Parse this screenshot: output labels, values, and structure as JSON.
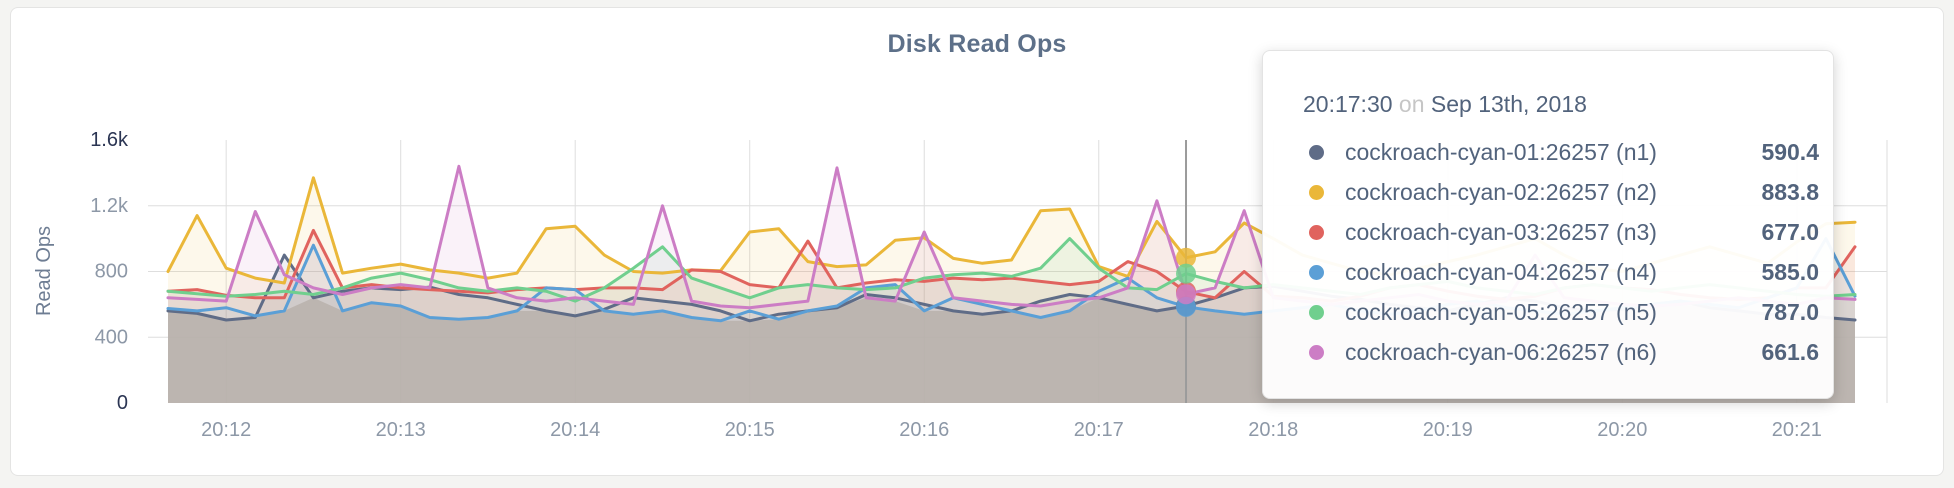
{
  "colors": {
    "title": "#5d7089",
    "axis_text": "#8d98a7",
    "axis_text_emphasis": "#2b3553",
    "axis_title": "#6e7d93",
    "grid": "#dedede",
    "hover_line": "#9b9b9b",
    "base_area_fill": "#d2cfc7",
    "tooltip_text": "#52637c",
    "tooltip_muted": "#c6c6c6"
  },
  "tooltip": {
    "time": "20:17:30",
    "connector": "on",
    "date": "Sep 13th, 2018",
    "hover_index": 35,
    "rows": [
      {
        "label": "cockroach-cyan-01:26257 (n1)",
        "value": "590.4",
        "color": "#5f6c87"
      },
      {
        "label": "cockroach-cyan-02:26257 (n2)",
        "value": "883.8",
        "color": "#eab739"
      },
      {
        "label": "cockroach-cyan-03:26257 (n3)",
        "value": "677.0",
        "color": "#e0635e"
      },
      {
        "label": "cockroach-cyan-04:26257 (n4)",
        "value": "585.0",
        "color": "#5b9fd6"
      },
      {
        "label": "cockroach-cyan-05:26257 (n5)",
        "value": "787.0",
        "color": "#70cf8e"
      },
      {
        "label": "cockroach-cyan-06:26257 (n6)",
        "value": "661.6",
        "color": "#cc7dc5"
      }
    ]
  },
  "chart_data": {
    "type": "line",
    "title": "Disk Read Ops",
    "ylabel": "Read Ops",
    "ylim": [
      0,
      1600
    ],
    "grid": true,
    "x_start": "20:11:40",
    "x_interval_seconds": 10,
    "x_ticks": [
      {
        "label": "20:12",
        "index": 2
      },
      {
        "label": "20:13",
        "index": 8
      },
      {
        "label": "20:14",
        "index": 14
      },
      {
        "label": "20:15",
        "index": 20
      },
      {
        "label": "20:16",
        "index": 26
      },
      {
        "label": "20:17",
        "index": 32
      },
      {
        "label": "20:18",
        "index": 38
      },
      {
        "label": "20:19",
        "index": 44
      },
      {
        "label": "20:20",
        "index": 50
      },
      {
        "label": "20:21",
        "index": 56
      }
    ],
    "y_ticks": [
      {
        "label": "0",
        "value": 0
      },
      {
        "label": "400",
        "value": 400
      },
      {
        "label": "800",
        "value": 800
      },
      {
        "label": "1.2k",
        "value": 1200
      },
      {
        "label": "1.6k",
        "value": 1600
      }
    ],
    "legend_position": "tooltip",
    "series": [
      {
        "name": "cockroach-cyan-01:26257 (n1)",
        "color": "#5f6c87",
        "values": [
          560,
          545,
          505,
          520,
          900,
          640,
          680,
          700,
          690,
          705,
          660,
          640,
          600,
          560,
          530,
          570,
          640,
          620,
          600,
          560,
          500,
          540,
          560,
          580,
          660,
          640,
          600,
          560,
          540,
          560,
          620,
          660,
          640,
          600,
          560,
          590.4,
          640,
          700,
          710,
          680,
          650,
          630,
          600,
          580,
          560,
          600,
          640,
          620,
          580,
          560,
          570,
          600,
          620,
          580,
          560,
          540,
          540,
          520,
          505
        ]
      },
      {
        "name": "cockroach-cyan-02:26257 (n2)",
        "color": "#eab739",
        "values": [
          800,
          1140,
          820,
          760,
          730,
          1370,
          790,
          820,
          845,
          810,
          790,
          760,
          790,
          1060,
          1075,
          900,
          800,
          790,
          810,
          805,
          1040,
          1060,
          860,
          830,
          840,
          990,
          1005,
          880,
          850,
          870,
          1170,
          1180,
          830,
          770,
          1105,
          883.8,
          920,
          1095,
          1000,
          900,
          850,
          800,
          780,
          820,
          860,
          900,
          950,
          1000,
          900,
          820,
          800,
          850,
          900,
          950,
          900,
          850,
          980,
          1090,
          1100
        ]
      },
      {
        "name": "cockroach-cyan-03:26257 (n3)",
        "color": "#e0635e",
        "values": [
          680,
          690,
          655,
          640,
          640,
          1050,
          700,
          720,
          700,
          690,
          680,
          670,
          690,
          700,
          690,
          700,
          700,
          690,
          810,
          800,
          720,
          700,
          985,
          700,
          730,
          750,
          740,
          760,
          750,
          760,
          740,
          720,
          740,
          860,
          800,
          677,
          640,
          800,
          650,
          640,
          620,
          650,
          700,
          720,
          680,
          650,
          630,
          650,
          700,
          720,
          700,
          690,
          660,
          640,
          630,
          640,
          700,
          700,
          950
        ]
      },
      {
        "name": "cockroach-cyan-04:26257 (n4)",
        "color": "#5b9fd6",
        "values": [
          575,
          560,
          580,
          530,
          560,
          960,
          560,
          610,
          590,
          520,
          510,
          520,
          560,
          700,
          690,
          560,
          540,
          560,
          520,
          500,
          560,
          510,
          560,
          590,
          700,
          720,
          560,
          640,
          600,
          560,
          520,
          560,
          680,
          760,
          640,
          585,
          560,
          540,
          560,
          580,
          600,
          560,
          540,
          560,
          600,
          620,
          580,
          560,
          540,
          560,
          580,
          600,
          620,
          600,
          580,
          640,
          700,
          1000,
          650
        ]
      },
      {
        "name": "cockroach-cyan-05:26257 (n5)",
        "color": "#70cf8e",
        "values": [
          680,
          665,
          650,
          660,
          680,
          660,
          700,
          760,
          790,
          750,
          700,
          680,
          700,
          680,
          620,
          700,
          820,
          950,
          760,
          700,
          640,
          700,
          720,
          700,
          690,
          700,
          760,
          780,
          790,
          770,
          820,
          1000,
          820,
          700,
          690,
          787,
          740,
          700,
          720,
          700,
          680,
          660,
          700,
          720,
          740,
          700,
          680,
          660,
          700,
          720,
          700,
          680,
          700,
          720,
          700,
          680,
          660,
          650,
          660
        ]
      },
      {
        "name": "cockroach-cyan-06:26257 (n6)",
        "color": "#cc7dc5",
        "values": [
          640,
          630,
          620,
          1165,
          780,
          700,
          660,
          700,
          720,
          700,
          1440,
          700,
          640,
          620,
          640,
          620,
          600,
          1200,
          620,
          590,
          580,
          600,
          620,
          1430,
          640,
          620,
          1040,
          640,
          620,
          600,
          590,
          620,
          640,
          700,
          1230,
          661.6,
          700,
          1170,
          640,
          620,
          600,
          620,
          640,
          660,
          620,
          600,
          620,
          900,
          640,
          620,
          600,
          590,
          600,
          620,
          640,
          620,
          600,
          640,
          630
        ]
      }
    ]
  }
}
